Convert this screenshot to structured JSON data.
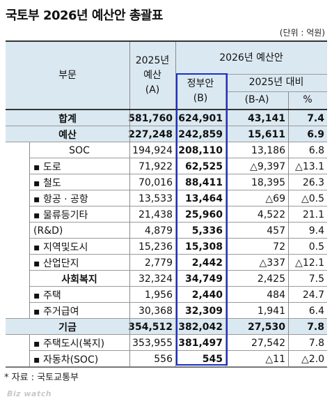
{
  "title": "국토부 2026년 예산안 총괄표",
  "unit": "(단위 : 억원)",
  "header": {
    "col_category": "부문",
    "col_2025_line1": "2025년",
    "col_2025_line2": "예산",
    "col_2025_line3": "(A)",
    "group_2026": "2026년 예산안",
    "col_gov_line1": "정부안",
    "col_gov_line2": "(B)",
    "group_vs2025": "2025년 대비",
    "col_diff": "(B-A)",
    "col_pct": "%"
  },
  "rows": [
    {
      "label": "합계",
      "a": "581,760",
      "b": "624,901",
      "diff": "43,141",
      "pct": "7.4"
    },
    {
      "label": "예산",
      "a": "227,248",
      "b": "242,859",
      "diff": "15,611",
      "pct": "6.9"
    },
    {
      "label": "SOC",
      "a": "194,924",
      "b": "208,110",
      "diff": "13,186",
      "pct": "6.8"
    },
    {
      "label": "▪ 도로",
      "a": "71,922",
      "b": "62,525",
      "diff": "△9,397",
      "pct": "△13.1"
    },
    {
      "label": "▪ 철도",
      "a": "70,016",
      "b": "88,411",
      "diff": "18,395",
      "pct": "26.3"
    },
    {
      "label": "▪ 항공 · 공항",
      "a": "13,533",
      "b": "13,464",
      "diff": "△69",
      "pct": "△0.5"
    },
    {
      "label": "▪ 물류등기타",
      "a": "21,438",
      "b": "25,960",
      "diff": "4,522",
      "pct": "21.1"
    },
    {
      "label": "(R&D)",
      "a": "4,879",
      "b": "5,336",
      "diff": "457",
      "pct": "9.4"
    },
    {
      "label": "▪ 지역및도시",
      "a": "15,236",
      "b": "15,308",
      "diff": "72",
      "pct": "0.5"
    },
    {
      "label": "▪ 산업단지",
      "a": "2,779",
      "b": "2,442",
      "diff": "△337",
      "pct": "△12.1"
    },
    {
      "label": "사회복지",
      "a": "32,324",
      "b": "34,749",
      "diff": "2,425",
      "pct": "7.5"
    },
    {
      "label": "▪ 주택",
      "a": "1,956",
      "b": "2,440",
      "diff": "484",
      "pct": "24.7"
    },
    {
      "label": "▪ 주거급여",
      "a": "30,368",
      "b": "32,309",
      "diff": "1,941",
      "pct": "6.4"
    },
    {
      "label": "기금",
      "a": "354,512",
      "b": "382,042",
      "diff": "27,530",
      "pct": "7.8"
    },
    {
      "label": "▪ 주택도시(복지)",
      "a": "353,955",
      "b": "381,497",
      "diff": "27,542",
      "pct": "7.8"
    },
    {
      "label": "▪ 자동차(SOC)",
      "a": "556",
      "b": "545",
      "diff": "△11",
      "pct": "△2.0"
    }
  ],
  "source": "* 자료 : 국토교통부",
  "watermark": "Biz watch"
}
